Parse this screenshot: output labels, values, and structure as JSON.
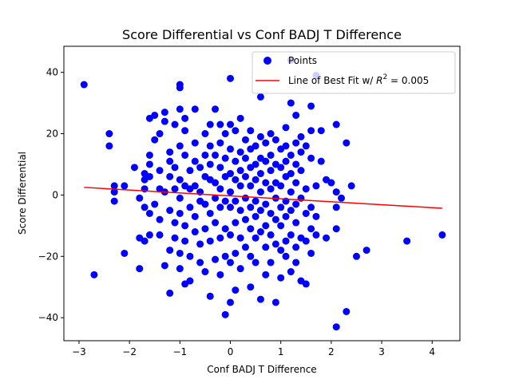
{
  "chart_data": {
    "type": "scatter",
    "title": "Score Differential vs Conf BADJ T Difference",
    "xlabel": "Conf BADJ T Difference",
    "ylabel": "Score Differential",
    "xlim": [
      -3.3,
      4.55
    ],
    "ylim": [
      -47.5,
      48.5
    ],
    "xticks": [
      -3,
      -2,
      -1,
      0,
      1,
      2,
      3,
      4
    ],
    "yticks": [
      -40,
      -20,
      0,
      20,
      40
    ],
    "grid": false,
    "legend_position": "top-right",
    "legend": {
      "points_label": "Points",
      "fit_label_prefix": "Line of Best Fit w/ ",
      "fit_label_r2": "R",
      "fit_label_suffix": " = 0.005"
    },
    "colors": {
      "points": "#0000ff",
      "fit_line": "#ff0000"
    },
    "series": [
      {
        "name": "Points",
        "points": [
          [
            -2.9,
            36
          ],
          [
            -2.7,
            -26
          ],
          [
            -2.4,
            20
          ],
          [
            -2.4,
            16
          ],
          [
            -2.3,
            3
          ],
          [
            -2.3,
            1
          ],
          [
            -2.3,
            -2
          ],
          [
            -2.1,
            3
          ],
          [
            -2.1,
            -19
          ],
          [
            -1.9,
            9
          ],
          [
            -1.8,
            -1
          ],
          [
            -1.8,
            -14
          ],
          [
            -1.8,
            -24
          ],
          [
            -1.7,
            7
          ],
          [
            -1.7,
            5
          ],
          [
            -1.7,
            2
          ],
          [
            -1.7,
            -4
          ],
          [
            -1.7,
            -15
          ],
          [
            -1.6,
            25
          ],
          [
            -1.6,
            13
          ],
          [
            -1.6,
            10
          ],
          [
            -1.6,
            6
          ],
          [
            -1.6,
            -6
          ],
          [
            -1.6,
            -13
          ],
          [
            -1.5,
            26
          ],
          [
            -1.5,
            18
          ],
          [
            -1.5,
            -3
          ],
          [
            -1.4,
            20
          ],
          [
            -1.4,
            8
          ],
          [
            -1.4,
            2
          ],
          [
            -1.4,
            -8
          ],
          [
            -1.4,
            -13
          ],
          [
            -1.3,
            27
          ],
          [
            -1.3,
            24
          ],
          [
            -1.3,
            1
          ],
          [
            -1.3,
            -23
          ],
          [
            -1.2,
            14
          ],
          [
            -1.2,
            11
          ],
          [
            -1.2,
            6
          ],
          [
            -1.2,
            -5
          ],
          [
            -1.2,
            -18
          ],
          [
            -1.2,
            -32
          ],
          [
            -1.1,
            23
          ],
          [
            -1.1,
            9
          ],
          [
            -1.1,
            2
          ],
          [
            -1.1,
            -9
          ],
          [
            -1.1,
            -14
          ],
          [
            -1.0,
            36
          ],
          [
            -1.0,
            35
          ],
          [
            -1.0,
            28
          ],
          [
            -1.0,
            16
          ],
          [
            -1.0,
            5
          ],
          [
            -1.0,
            -1
          ],
          [
            -1.0,
            -6
          ],
          [
            -1.0,
            -19
          ],
          [
            -1.0,
            -24
          ],
          [
            -0.9,
            25
          ],
          [
            -0.9,
            21
          ],
          [
            -0.9,
            13
          ],
          [
            -0.9,
            3
          ],
          [
            -0.9,
            -10
          ],
          [
            -0.9,
            -15
          ],
          [
            -0.9,
            -29
          ],
          [
            -0.8,
            8
          ],
          [
            -0.8,
            2
          ],
          [
            -0.8,
            -4
          ],
          [
            -0.8,
            -20
          ],
          [
            -0.8,
            -28
          ],
          [
            -0.7,
            28
          ],
          [
            -0.7,
            17
          ],
          [
            -0.7,
            11
          ],
          [
            -0.7,
            3
          ],
          [
            -0.7,
            -7
          ],
          [
            -0.7,
            -12
          ],
          [
            -0.6,
            9
          ],
          [
            -0.6,
            1
          ],
          [
            -0.6,
            -2
          ],
          [
            -0.6,
            -16
          ],
          [
            -0.6,
            -22
          ],
          [
            -0.5,
            20
          ],
          [
            -0.5,
            13
          ],
          [
            -0.5,
            6
          ],
          [
            -0.5,
            -3
          ],
          [
            -0.5,
            -11
          ],
          [
            -0.5,
            -25
          ],
          [
            -0.4,
            23
          ],
          [
            -0.4,
            16
          ],
          [
            -0.4,
            10
          ],
          [
            -0.4,
            5
          ],
          [
            -0.4,
            -6
          ],
          [
            -0.4,
            -15
          ],
          [
            -0.4,
            -33
          ],
          [
            -0.3,
            28
          ],
          [
            -0.3,
            13
          ],
          [
            -0.3,
            4
          ],
          [
            -0.3,
            -1
          ],
          [
            -0.3,
            -9
          ],
          [
            -0.3,
            -21
          ],
          [
            -0.2,
            23
          ],
          [
            -0.2,
            17
          ],
          [
            -0.2,
            9
          ],
          [
            -0.2,
            2
          ],
          [
            -0.2,
            -4
          ],
          [
            -0.2,
            -14
          ],
          [
            -0.2,
            -26
          ],
          [
            -0.1,
            20
          ],
          [
            -0.1,
            12
          ],
          [
            -0.1,
            6
          ],
          [
            -0.1,
            -2
          ],
          [
            -0.1,
            -11
          ],
          [
            -0.1,
            -20
          ],
          [
            -0.1,
            -39
          ],
          [
            0.0,
            38
          ],
          [
            0.0,
            23
          ],
          [
            0.0,
            15
          ],
          [
            0.0,
            7
          ],
          [
            0.0,
            1
          ],
          [
            0.0,
            -4
          ],
          [
            0.0,
            -13
          ],
          [
            0.0,
            -22
          ],
          [
            0.0,
            -35
          ],
          [
            0.1,
            21
          ],
          [
            0.1,
            11
          ],
          [
            0.1,
            5
          ],
          [
            0.1,
            -2
          ],
          [
            0.1,
            -9
          ],
          [
            0.1,
            -19
          ],
          [
            0.1,
            -31
          ],
          [
            0.2,
            25
          ],
          [
            0.2,
            14
          ],
          [
            0.2,
            8
          ],
          [
            0.2,
            3
          ],
          [
            0.2,
            -5
          ],
          [
            0.2,
            -14
          ],
          [
            0.2,
            -24
          ],
          [
            0.3,
            18
          ],
          [
            0.3,
            12
          ],
          [
            0.3,
            6
          ],
          [
            0.3,
            -1
          ],
          [
            0.3,
            -8
          ],
          [
            0.3,
            -17
          ],
          [
            0.4,
            21
          ],
          [
            0.4,
            15
          ],
          [
            0.4,
            9
          ],
          [
            0.4,
            3
          ],
          [
            0.4,
            -4
          ],
          [
            0.4,
            -11
          ],
          [
            0.4,
            -20
          ],
          [
            0.4,
            -30
          ],
          [
            0.5,
            16
          ],
          [
            0.5,
            10
          ],
          [
            0.5,
            5
          ],
          [
            0.5,
            -2
          ],
          [
            0.5,
            -7
          ],
          [
            0.5,
            -14
          ],
          [
            0.5,
            -22
          ],
          [
            0.6,
            32
          ],
          [
            0.6,
            19
          ],
          [
            0.6,
            12
          ],
          [
            0.6,
            7
          ],
          [
            0.6,
            1
          ],
          [
            0.6,
            -5
          ],
          [
            0.6,
            -12
          ],
          [
            0.6,
            -34
          ],
          [
            0.7,
            17
          ],
          [
            0.7,
            11
          ],
          [
            0.7,
            4
          ],
          [
            0.7,
            -3
          ],
          [
            0.7,
            -10
          ],
          [
            0.7,
            -17
          ],
          [
            0.7,
            -26
          ],
          [
            0.8,
            20
          ],
          [
            0.8,
            13
          ],
          [
            0.8,
            8
          ],
          [
            0.8,
            2
          ],
          [
            0.8,
            -6
          ],
          [
            0.8,
            -13
          ],
          [
            0.8,
            -22
          ],
          [
            0.9,
            18
          ],
          [
            0.9,
            10
          ],
          [
            0.9,
            4
          ],
          [
            0.9,
            -1
          ],
          [
            0.9,
            -8
          ],
          [
            0.9,
            -16
          ],
          [
            0.9,
            -35
          ],
          [
            1.0,
            15
          ],
          [
            1.0,
            9
          ],
          [
            1.0,
            3
          ],
          [
            1.0,
            -4
          ],
          [
            1.0,
            -10
          ],
          [
            1.0,
            -18
          ],
          [
            1.0,
            -27
          ],
          [
            1.1,
            22
          ],
          [
            1.1,
            16
          ],
          [
            1.1,
            11
          ],
          [
            1.1,
            6
          ],
          [
            1.1,
            -2
          ],
          [
            1.1,
            -7
          ],
          [
            1.1,
            -15
          ],
          [
            1.1,
            -20
          ],
          [
            1.2,
            44
          ],
          [
            1.2,
            30
          ],
          [
            1.2,
            13
          ],
          [
            1.2,
            7
          ],
          [
            1.2,
            1
          ],
          [
            1.2,
            -5
          ],
          [
            1.2,
            -13
          ],
          [
            1.2,
            -25
          ],
          [
            1.3,
            26
          ],
          [
            1.3,
            17
          ],
          [
            1.3,
            10
          ],
          [
            1.3,
            4
          ],
          [
            1.3,
            -3
          ],
          [
            1.3,
            -9
          ],
          [
            1.3,
            -17
          ],
          [
            1.3,
            -22
          ],
          [
            1.4,
            19
          ],
          [
            1.4,
            14
          ],
          [
            1.4,
            8
          ],
          [
            1.4,
            -1
          ],
          [
            1.4,
            -14
          ],
          [
            1.4,
            -28
          ],
          [
            1.5,
            16
          ],
          [
            1.5,
            2
          ],
          [
            1.5,
            -6
          ],
          [
            1.5,
            -15
          ],
          [
            1.5,
            -29
          ],
          [
            1.6,
            29
          ],
          [
            1.6,
            21
          ],
          [
            1.6,
            12
          ],
          [
            1.6,
            -4
          ],
          [
            1.6,
            -11
          ],
          [
            1.6,
            -19
          ],
          [
            1.7,
            39
          ],
          [
            1.7,
            3
          ],
          [
            1.7,
            -7
          ],
          [
            1.7,
            -13
          ],
          [
            1.8,
            21
          ],
          [
            1.8,
            11
          ],
          [
            1.9,
            5
          ],
          [
            1.9,
            -14
          ],
          [
            2.0,
            4
          ],
          [
            2.1,
            23
          ],
          [
            2.1,
            1
          ],
          [
            2.1,
            -4
          ],
          [
            2.1,
            -11
          ],
          [
            2.1,
            -43
          ],
          [
            2.2,
            -1
          ],
          [
            2.3,
            17
          ],
          [
            2.3,
            -38
          ],
          [
            2.4,
            3
          ],
          [
            2.5,
            -20
          ],
          [
            2.7,
            -18
          ],
          [
            3.5,
            -15
          ],
          [
            4.2,
            -13
          ]
        ]
      }
    ],
    "fit_line": {
      "x": [
        -2.9,
        4.2
      ],
      "y": [
        2.5,
        -4.3
      ]
    }
  }
}
